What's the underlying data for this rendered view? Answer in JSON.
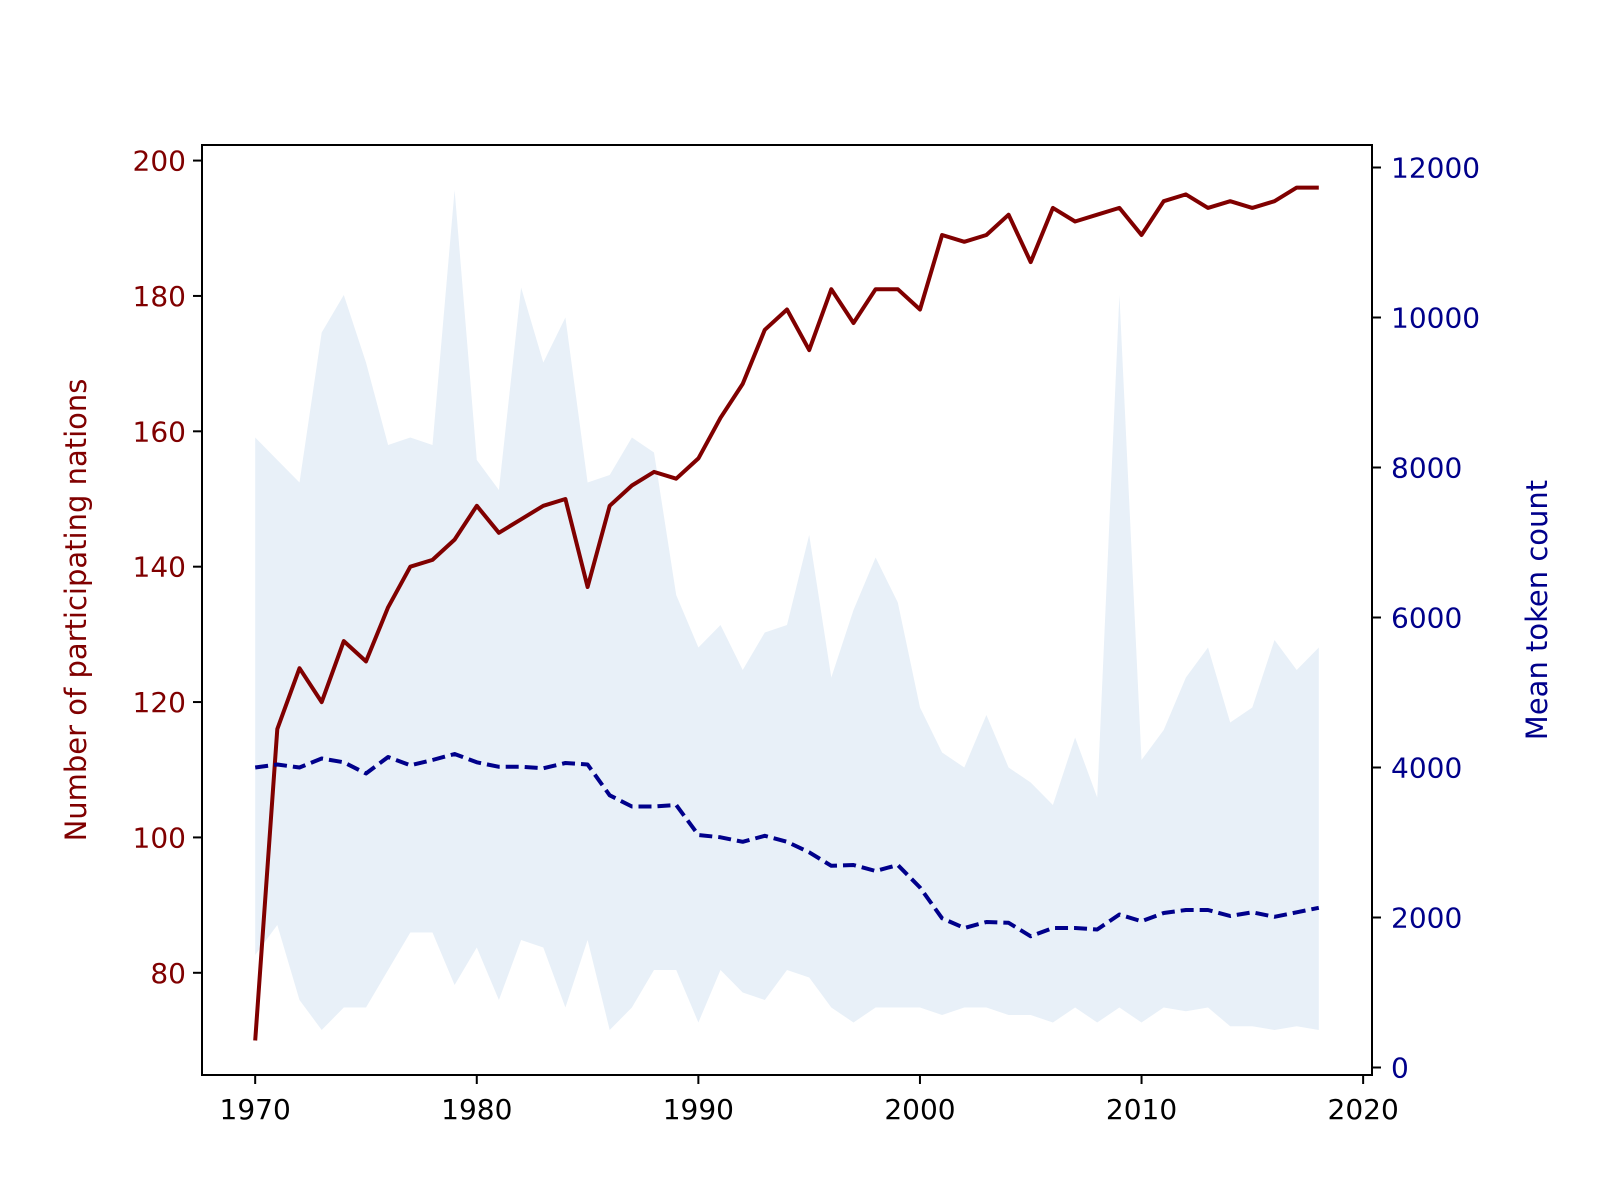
{
  "chart_data": {
    "type": "line",
    "title": "",
    "xlabel": "",
    "x_ticks": [
      1970,
      1980,
      1990,
      2000,
      2010,
      2020
    ],
    "xlim": [
      1967.6,
      2020.4
    ],
    "left_axis": {
      "label": "Number of participating nations",
      "color": "#800000",
      "ylim": [
        64.9,
        202.3
      ],
      "ticks": [
        80,
        100,
        120,
        140,
        160,
        180,
        200
      ]
    },
    "right_axis": {
      "label": "Mean token count",
      "color": "#00008b",
      "ylim": [
        -100,
        12300
      ],
      "ticks": [
        0,
        2000,
        4000,
        6000,
        8000,
        10000,
        12000
      ]
    },
    "x": [
      1970,
      1971,
      1972,
      1973,
      1974,
      1975,
      1976,
      1977,
      1978,
      1979,
      1980,
      1981,
      1982,
      1983,
      1984,
      1985,
      1986,
      1987,
      1988,
      1989,
      1990,
      1991,
      1992,
      1993,
      1994,
      1995,
      1996,
      1997,
      1998,
      1999,
      2000,
      2001,
      2002,
      2003,
      2004,
      2005,
      2006,
      2007,
      2008,
      2009,
      2010,
      2011,
      2012,
      2013,
      2014,
      2015,
      2016,
      2017,
      2018
    ],
    "series": [
      {
        "axis": "left",
        "style": "solid",
        "color": "#800000",
        "values": [
          70,
          116,
          125,
          120,
          129,
          126,
          134,
          140,
          141,
          144,
          149,
          145,
          147,
          149,
          150,
          137,
          149,
          152,
          154,
          153,
          156,
          162,
          167,
          175,
          178,
          172,
          181,
          176,
          181,
          181,
          178,
          189,
          188,
          189,
          192,
          185,
          193,
          191,
          192,
          193,
          189,
          194,
          195,
          193,
          194,
          193,
          194,
          196,
          196
        ]
      },
      {
        "axis": "right",
        "style": "dashed",
        "color": "#00008b",
        "values": [
          4000,
          4040,
          4000,
          4120,
          4070,
          3920,
          4140,
          4030,
          4100,
          4180,
          4070,
          4010,
          4010,
          3990,
          4060,
          4040,
          3630,
          3480,
          3480,
          3500,
          3100,
          3070,
          3010,
          3090,
          3010,
          2870,
          2690,
          2700,
          2620,
          2700,
          2400,
          1990,
          1860,
          1940,
          1930,
          1750,
          1860,
          1860,
          1840,
          2040,
          1950,
          2060,
          2100,
          2100,
          2020,
          2070,
          2010,
          2070,
          2130
        ]
      }
    ],
    "band": {
      "axis": "right",
      "color": "#e8f0f8",
      "upper": [
        8400,
        8100,
        7800,
        9800,
        10300,
        9400,
        8300,
        8400,
        8300,
        11700,
        8100,
        7700,
        10400,
        9400,
        10000,
        7800,
        7900,
        8400,
        8200,
        6300,
        5600,
        5900,
        5300,
        5800,
        5900,
        7100,
        5200,
        6100,
        6800,
        6200,
        4800,
        4200,
        4000,
        4700,
        4000,
        3800,
        3500,
        4400,
        3600,
        10300,
        4100,
        4500,
        5200,
        5600,
        4600,
        4800,
        5700,
        5300,
        5600
      ],
      "lower": [
        1500,
        1900,
        900,
        500,
        800,
        800,
        1300,
        1800,
        1800,
        1100,
        1600,
        900,
        1700,
        1600,
        800,
        1700,
        500,
        800,
        1300,
        1300,
        600,
        1300,
        1000,
        900,
        1300,
        1200,
        800,
        600,
        800,
        800,
        800,
        700,
        800,
        800,
        700,
        700,
        600,
        800,
        600,
        800,
        600,
        800,
        750,
        800,
        550,
        550,
        500,
        550,
        500
      ]
    }
  }
}
